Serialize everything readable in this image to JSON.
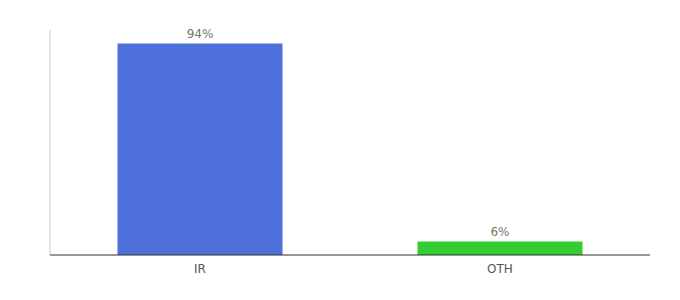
{
  "chart_data": {
    "type": "bar",
    "categories": [
      "IR",
      "OTH"
    ],
    "values": [
      94,
      6
    ],
    "value_labels": [
      "94%",
      "6%"
    ],
    "colors": [
      "#4d6fd9",
      "#33cc33"
    ],
    "ylim": [
      0,
      100
    ],
    "data_labels": true,
    "tick_labels": "x"
  }
}
